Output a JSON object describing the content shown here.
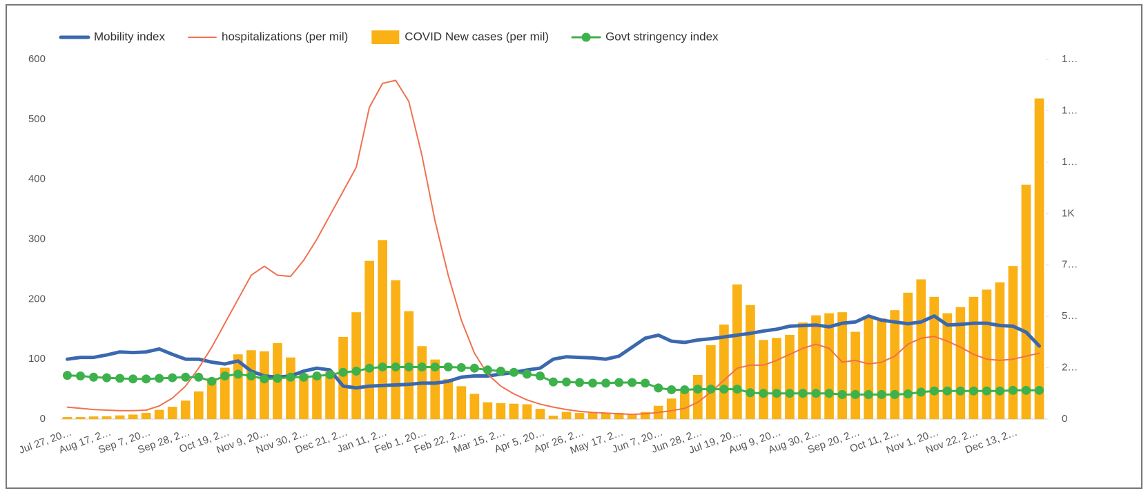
{
  "chart_data": {
    "type": "combo",
    "categories": [
      "Jul 27, 20…",
      null,
      null,
      "Aug 17, 2…",
      null,
      null,
      "Sep 7, 20…",
      null,
      null,
      "Sep 28, 2…",
      null,
      null,
      "Oct 19, 2…",
      null,
      null,
      "Nov 9, 20…",
      null,
      null,
      "Nov 30, 2…",
      null,
      null,
      "Dec 21, 2…",
      null,
      null,
      "Jan 11, 2…",
      null,
      null,
      "Feb 1, 20…",
      null,
      null,
      "Feb 22, 2…",
      null,
      null,
      "Mar 15, 2…",
      null,
      null,
      "Apr 5, 20…",
      null,
      null,
      "Apr 26, 2…",
      null,
      null,
      "May 17, 2…",
      null,
      null,
      "Jun 7, 20…",
      null,
      null,
      "Jun 28, 2…",
      null,
      null,
      "Jul 19, 20…",
      null,
      null,
      "Aug 9, 20…",
      null,
      null,
      "Aug 30, 2…",
      null,
      null,
      "Sep 20, 2…",
      null,
      null,
      "Oct 11, 2…",
      null,
      null,
      "Nov 1, 20…",
      null,
      null,
      "Nov 22, 2…",
      null,
      null,
      "Dec 13, 2…",
      null,
      null
    ],
    "series": [
      {
        "name": "Mobility index",
        "type": "line",
        "color": "#3b68ae",
        "axis": "y",
        "values": [
          100,
          103,
          103,
          107,
          112,
          111,
          112,
          117,
          108,
          100,
          100,
          95,
          92,
          97,
          80,
          72,
          70,
          72,
          80,
          85,
          82,
          55,
          52,
          55,
          56,
          57,
          58,
          60,
          60,
          63,
          70,
          72,
          72,
          75,
          78,
          82,
          85,
          100,
          104,
          103,
          102,
          100,
          105,
          120,
          135,
          140,
          130,
          128,
          132,
          134,
          137,
          140,
          143,
          147,
          150,
          155,
          156,
          157,
          154,
          160,
          162,
          172,
          165,
          162,
          159,
          162,
          172,
          157,
          158,
          160,
          160,
          156,
          155,
          145,
          122
        ]
      },
      {
        "name": "hospitalizations (per mil)",
        "type": "line",
        "color": "#f07050",
        "axis": "y",
        "values": [
          20,
          18,
          16,
          15,
          14,
          14,
          15,
          22,
          35,
          55,
          85,
          120,
          160,
          200,
          240,
          255,
          240,
          238,
          265,
          300,
          340,
          380,
          420,
          520,
          560,
          565,
          530,
          440,
          330,
          240,
          165,
          110,
          75,
          55,
          42,
          32,
          25,
          20,
          16,
          13,
          11,
          10,
          9,
          8,
          9,
          11,
          14,
          18,
          28,
          45,
          65,
          85,
          90,
          90,
          98,
          108,
          118,
          125,
          118,
          95,
          98,
          92,
          95,
          105,
          125,
          135,
          138,
          130,
          120,
          108,
          100,
          98,
          100,
          105,
          110
        ]
      },
      {
        "name": "COVID New cases (per mil)",
        "type": "bar",
        "color": "#f9b115",
        "axis": "y2",
        "values": [
          10,
          10,
          13,
          14,
          18,
          22,
          30,
          45,
          60,
          90,
          135,
          200,
          250,
          315,
          335,
          330,
          370,
          300,
          220,
          205,
          230,
          400,
          520,
          770,
          870,
          675,
          525,
          355,
          290,
          195,
          160,
          123,
          82,
          78,
          75,
          72,
          50,
          17,
          35,
          30,
          30,
          27,
          30,
          23,
          35,
          65,
          100,
          135,
          215,
          360,
          460,
          655,
          555,
          385,
          395,
          410,
          470,
          505,
          515,
          520,
          425,
          495,
          490,
          530,
          615,
          680,
          595,
          515,
          545,
          595,
          630,
          665,
          745,
          1140,
          1560
        ]
      },
      {
        "name": "Govt stringency index",
        "type": "line",
        "marker": true,
        "color": "#3db14b",
        "axis": "y",
        "values": [
          73,
          72,
          70,
          69,
          68,
          67,
          67,
          68,
          69,
          70,
          70,
          63,
          72,
          75,
          72,
          67,
          68,
          70,
          70,
          72,
          74,
          78,
          80,
          85,
          87,
          87,
          87,
          87,
          87,
          87,
          86,
          85,
          82,
          80,
          78,
          75,
          72,
          62,
          62,
          61,
          60,
          60,
          61,
          61,
          60,
          52,
          49,
          49,
          50,
          50,
          50,
          50,
          44,
          43,
          43,
          43,
          43,
          43,
          43,
          41,
          41,
          41,
          41,
          41,
          42,
          45,
          47,
          47,
          47,
          47,
          47,
          47,
          48,
          48,
          48
        ]
      }
    ],
    "ylim": [
      0,
      600
    ],
    "yticks": [
      0,
      100,
      200,
      300,
      400,
      500,
      600
    ],
    "y2lim": [
      0,
      1750
    ],
    "y2ticks": [
      0,
      {
        "value": 250,
        "label": "2…"
      },
      {
        "value": 500,
        "label": "5…"
      },
      {
        "value": 750,
        "label": "7…"
      },
      {
        "value": 1000,
        "label": "1K"
      },
      {
        "value": 1250,
        "label": "1…"
      },
      {
        "value": 1500,
        "label": "1…"
      },
      {
        "value": 1750,
        "label": "1…"
      }
    ],
    "legend": "top-left"
  }
}
